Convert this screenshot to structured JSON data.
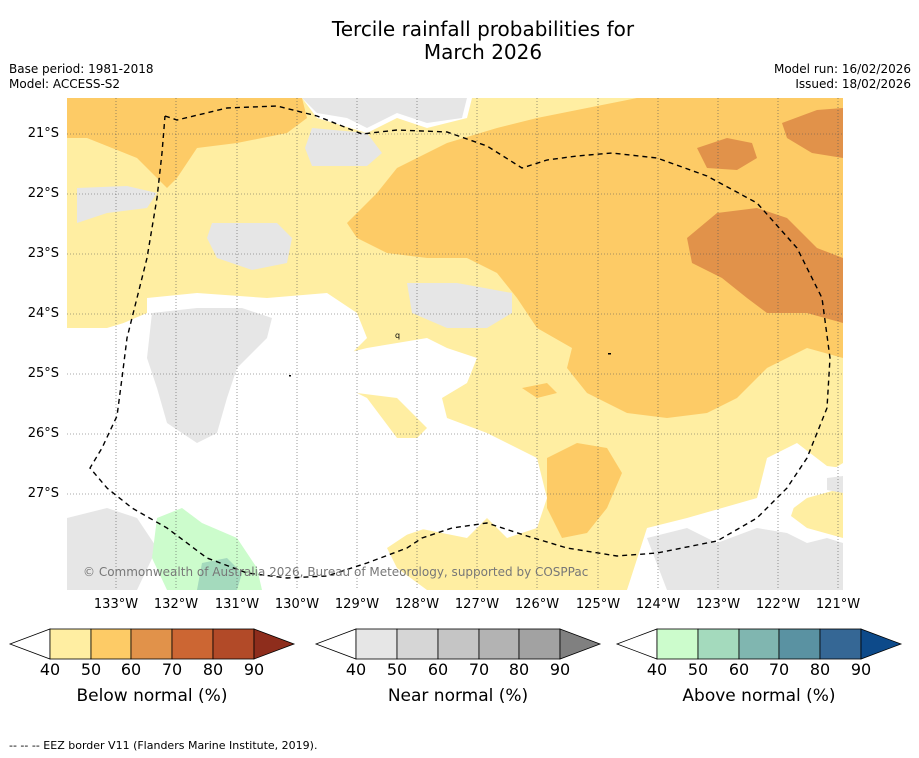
{
  "title": {
    "line1": "Tercile rainfall probabilities for",
    "line2": "March 2026"
  },
  "meta_left": {
    "base_period": "Base period: 1981-2018",
    "model": "Model: ACCESS-S2"
  },
  "meta_right": {
    "model_run": "Model run: 16/02/2026",
    "issued": "Issued: 18/02/2026"
  },
  "lat_labels": [
    "21°S",
    "22°S",
    "23°S",
    "24°S",
    "25°S",
    "26°S",
    "27°S"
  ],
  "lon_labels": [
    "133°W",
    "132°W",
    "131°W",
    "130°W",
    "129°W",
    "128°W",
    "127°W",
    "126°W",
    "125°W",
    "124°W",
    "123°W",
    "122°W",
    "121°W"
  ],
  "copyright": "© Commonwealth of Australia 2026, Bureau of Meteorology, supported by COSPPac",
  "colorbars": [
    {
      "name": "below",
      "title": "Below normal (%)",
      "ticks": [
        "40",
        "50",
        "60",
        "70",
        "80",
        "90"
      ],
      "colors": [
        "#ffeea2",
        "#fdcb66",
        "#e1924a",
        "#cc6633",
        "#b24a28",
        "#8e2d1c"
      ]
    },
    {
      "name": "near",
      "title": "Near normal (%)",
      "ticks": [
        "40",
        "50",
        "60",
        "70",
        "80",
        "90"
      ],
      "colors": [
        "#e6e6e6",
        "#d6d6d6",
        "#c5c5c5",
        "#b3b3b3",
        "#a2a2a2",
        "#808080"
      ]
    },
    {
      "name": "above",
      "title": "Above normal (%)",
      "ticks": [
        "40",
        "50",
        "60",
        "70",
        "80",
        "90"
      ],
      "colors": [
        "#ccfccc",
        "#a4dabd",
        "#80b6b0",
        "#5a92a2",
        "#356795",
        "#0d4a8a"
      ]
    }
  ],
  "footer": "--  --  -- EEZ border V11 (Flanders Marine Institute, 2019)."
}
